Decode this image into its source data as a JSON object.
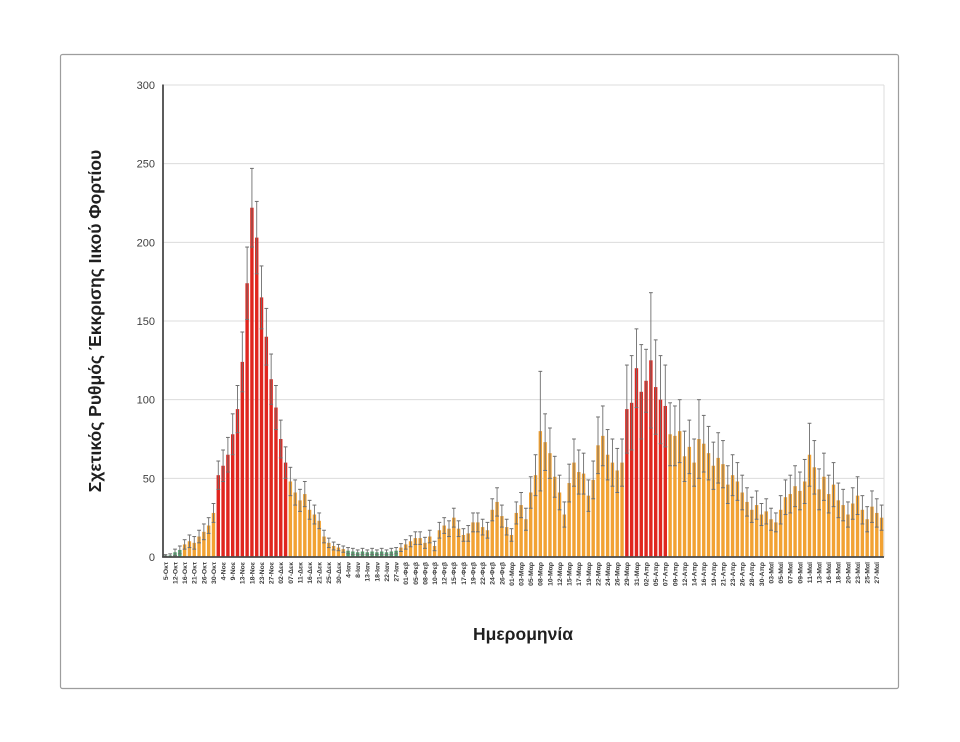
{
  "figure": {
    "background": "#ffffff",
    "border_color": "#9d9d9d",
    "plot_background": "#ffffff",
    "gridline_color": "#dcdcdc",
    "axis_color": "#4a4a4a",
    "error_bar_color": "#6e6e6e"
  },
  "chart_data": {
    "type": "bar",
    "title": "",
    "xlabel": "Ημερομηνία",
    "ylabel": "Σχετικός Ρυθμός Έκκρισης Ιικού Φορτίου",
    "ylim": [
      0,
      300
    ],
    "y_ticks": [
      0,
      50,
      100,
      150,
      200,
      250,
      300
    ],
    "grid": "horizontal",
    "legend": "none",
    "error_bars": "symmetric",
    "bar_count": 150,
    "x_tick_every_n_bars": 2,
    "bar_colors": {
      "o": "#F2A233",
      "r": "#E0261F",
      "g": "#4FA36C"
    },
    "x_tick_labels": [
      "5-Οκτ",
      "12-Οκτ",
      "16-Οκτ",
      "21-Οκτ",
      "26-Οκτ",
      "30-Οκτ",
      "4-Νοε",
      "9-Νοε",
      "13-Νοε",
      "18-Νοε",
      "23-Νοε",
      "27-Νοε",
      "02-Δεκ",
      "07-Δεκ",
      "11-Δεκ",
      "16-Δεκ",
      "21-Δεκ",
      "25-Δεκ",
      "30-Δεκ",
      "4-Ιαν",
      "8-Ιαν",
      "13-Ιαν",
      "18-Ιαν",
      "22-Ιαν",
      "27-Ιαν",
      "01-Φεβ",
      "05-Φεβ",
      "08-Φεβ",
      "10-Φεβ",
      "12-Φεβ",
      "15-Φεβ",
      "17-Φεβ",
      "19-Φεβ",
      "22-Φεβ",
      "24-Φεβ",
      "26-Φεβ",
      "01-Μαρ",
      "03-Μαρ",
      "05-Μαρ",
      "08-Μαρ",
      "10-Μαρ",
      "12-Μαρ",
      "15-Μαρ",
      "17-Μαρ",
      "19-Μαρ",
      "22-Μαρ",
      "24-Μαρ",
      "26-Μαρ",
      "29-Μαρ",
      "31-Μαρ",
      "02-Απρ",
      "05-Απρ",
      "07-Απρ",
      "09-Απρ",
      "12-Απρ",
      "14-Απρ",
      "16-Απρ",
      "19-Απρ",
      "21-Απρ",
      "23-Απρ",
      "26-Απρ",
      "28-Απρ",
      "30-Απρ",
      "03-Μαϊ",
      "05-Μαϊ",
      "07-Μαϊ",
      "09-Μαϊ",
      "11-Μαϊ",
      "13-Μαϊ",
      "16-Μαϊ",
      "18-Μαϊ",
      "20-Μαϊ",
      "23-Μαϊ",
      "25-Μαϊ",
      "27-Μαϊ"
    ],
    "color_codes": "ggggooooooorrrrrrrrrrrrrrroooooooooooogggggggggggooooooooooooooooooooooooooooooooooooooooooooooorrrrrrrrrooooooooooooooooooooooooooooooooooooooooooooo",
    "values": [
      1,
      1,
      3,
      4.5,
      8,
      10,
      9,
      13,
      16,
      20,
      28,
      52,
      58,
      65,
      78,
      94,
      124,
      174,
      222,
      203,
      165,
      140,
      113,
      95,
      75,
      60,
      48,
      41,
      36,
      40,
      30,
      27,
      23,
      13,
      9,
      7,
      6,
      5,
      4,
      3.5,
      3,
      3.5,
      3,
      3.5,
      3,
      3.5,
      3,
      3.5,
      4,
      6,
      8,
      10,
      12,
      12,
      9,
      13,
      7,
      17,
      20,
      18,
      25,
      18,
      14,
      15,
      22,
      22,
      19,
      17,
      30,
      35,
      26,
      19,
      14,
      28,
      33,
      24,
      41,
      52,
      80,
      73,
      66,
      51,
      41,
      27,
      47,
      60,
      54,
      53,
      39,
      49,
      71,
      77,
      65,
      60,
      55,
      60,
      94,
      98,
      120,
      105,
      112,
      125,
      108,
      100,
      96,
      78,
      77,
      80,
      64,
      70,
      60,
      75,
      72,
      66,
      58,
      63,
      59,
      46,
      52,
      48,
      41,
      35,
      30,
      33,
      27,
      29,
      24,
      22,
      30,
      38,
      40,
      45,
      42,
      48,
      65,
      57,
      43,
      51,
      40,
      46,
      36,
      33,
      27,
      34,
      39,
      30,
      24,
      32,
      28,
      25
    ],
    "errors": [
      0.5,
      1,
      2,
      2.5,
      3,
      4,
      4,
      4,
      5,
      5,
      6,
      9,
      10,
      11,
      13,
      15,
      19,
      23,
      25,
      23,
      20,
      18,
      16,
      14,
      12,
      10,
      9,
      8,
      7,
      8,
      6,
      6,
      5,
      4,
      3,
      2.5,
      2,
      2,
      2,
      2,
      1.5,
      2,
      1.5,
      2,
      1.5,
      2,
      1.5,
      2,
      2,
      2.5,
      3,
      3.5,
      4,
      4,
      3.5,
      4,
      3,
      5,
      5,
      5,
      6,
      5,
      4,
      5,
      6,
      6,
      5,
      5,
      7,
      9,
      7,
      5,
      4,
      7,
      8,
      7,
      10,
      13,
      38,
      18,
      16,
      13,
      11,
      8,
      12,
      15,
      14,
      13,
      10,
      12,
      18,
      19,
      16,
      15,
      14,
      15,
      28,
      30,
      25,
      30,
      20,
      43,
      30,
      28,
      26,
      20,
      19,
      20,
      16,
      17,
      15,
      25,
      18,
      17,
      15,
      16,
      15,
      12,
      13,
      12,
      11,
      9,
      8,
      9,
      7,
      8,
      7,
      6,
      9,
      11,
      12,
      13,
      12,
      14,
      20,
      17,
      13,
      15,
      12,
      14,
      11,
      10,
      8,
      10,
      12,
      9,
      8,
      10,
      9,
      8
    ]
  }
}
